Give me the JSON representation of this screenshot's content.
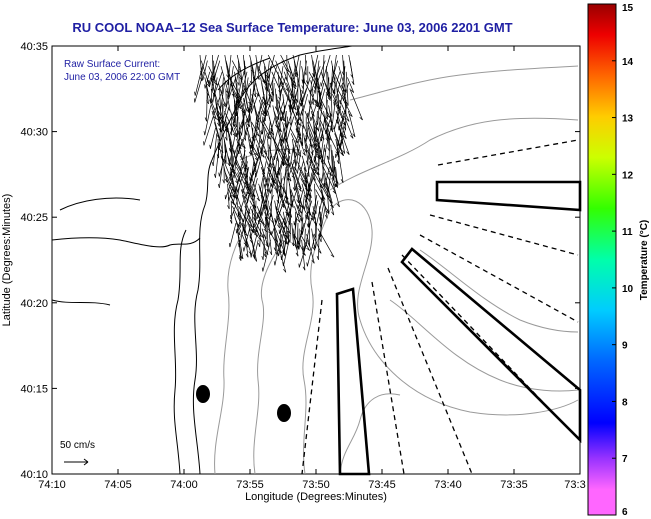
{
  "title": "RU COOL  NOAA–12  Sea Surface Temperature:  June 03, 2006 2201 GMT",
  "annotation": {
    "line1": "Raw Surface Current:",
    "line2": "June 03, 2006 22:00 GMT"
  },
  "scale_label": "50 cm/s",
  "axes": {
    "xlabel": "Longitude (Degrees:Minutes)",
    "ylabel": "Latitude (Degrees:Minutes)",
    "x_ticks": [
      "74:10",
      "74:05",
      "74:00",
      "73:55",
      "73:50",
      "73:45",
      "73:40",
      "73:35",
      "73:3"
    ],
    "y_ticks": [
      "40:35",
      "40:30",
      "40:25",
      "40:20",
      "40:15",
      "40:10"
    ]
  },
  "colorbar": {
    "label": "Temperature (°C)",
    "ticks": [
      "15",
      "14",
      "13",
      "12",
      "11",
      "10",
      "9",
      "8",
      "7",
      "6"
    ],
    "min": 6,
    "max": 15
  },
  "colors": {
    "title": "#1f1fa3",
    "land_outline": "#000000",
    "bathymetry": "#999999"
  }
}
